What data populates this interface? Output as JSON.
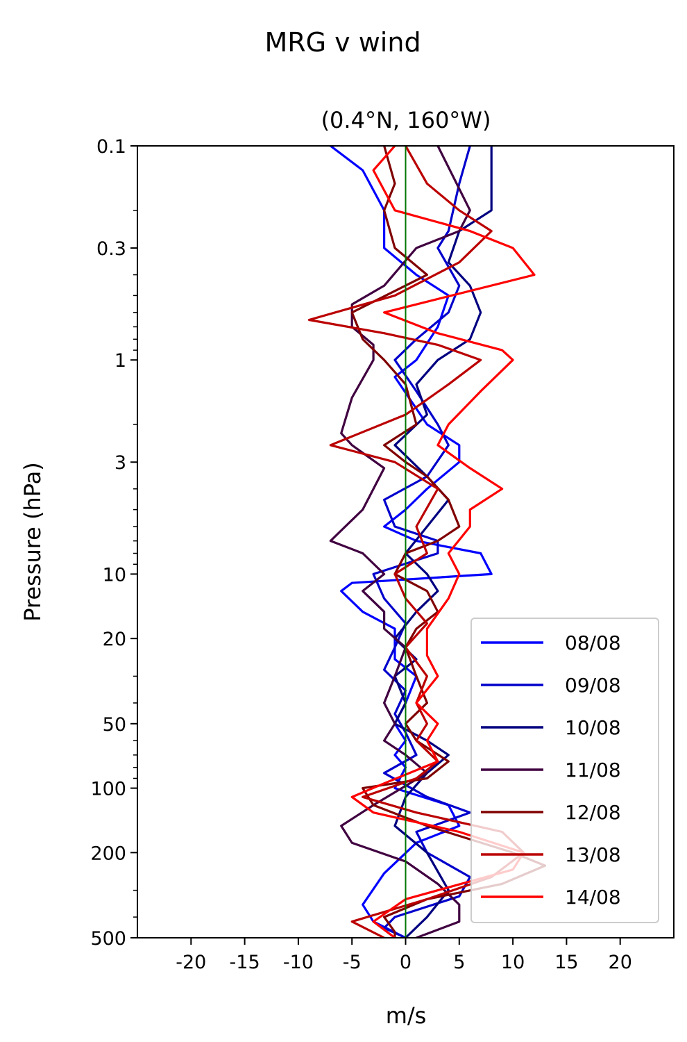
{
  "chart_data": {
    "type": "line",
    "title": "MRG v wind",
    "subtitle": "(0.4°N, 160°W)",
    "xlabel": "m/s",
    "ylabel": "Pressure (hPa)",
    "xlim": [
      -25,
      25
    ],
    "ylim": [
      500,
      0.1
    ],
    "yscale": "log",
    "xticks": [
      -20,
      -15,
      -10,
      -5,
      0,
      5,
      10,
      15,
      20
    ],
    "xtick_labels": [
      "-20",
      "-15",
      "-10",
      "-5",
      "0",
      "5",
      "10",
      "15",
      "20"
    ],
    "yticks": [
      0.1,
      0.3,
      1,
      3,
      10,
      20,
      50,
      100,
      200,
      500
    ],
    "ytick_labels": [
      "0.1",
      "0.3",
      "1",
      "3",
      "10",
      "20",
      "50",
      "100",
      "200",
      "500"
    ],
    "zero_line_color": "#007700",
    "legend_position": "lower right",
    "grid": false,
    "series": [
      {
        "name": "08/08",
        "color": "#0000ff",
        "points": [
          [
            -7,
            0.1
          ],
          [
            -4,
            0.13
          ],
          [
            -2,
            0.2
          ],
          [
            -2,
            0.3
          ],
          [
            1,
            0.4
          ],
          [
            4,
            0.5
          ],
          [
            3,
            0.7
          ],
          [
            1,
            1.0
          ],
          [
            -1,
            1.2
          ],
          [
            2,
            2.0
          ],
          [
            5,
            2.5
          ],
          [
            5,
            3.0
          ],
          [
            2,
            4.0
          ],
          [
            0,
            5.0
          ],
          [
            -2,
            6.0
          ],
          [
            1,
            7.0
          ],
          [
            7,
            8.0
          ],
          [
            8,
            10
          ],
          [
            -5,
            11
          ],
          [
            -6,
            12
          ],
          [
            -4,
            15
          ],
          [
            -1,
            18
          ],
          [
            -1,
            25
          ],
          [
            1,
            30
          ],
          [
            0,
            40
          ],
          [
            -1,
            50
          ],
          [
            0,
            60
          ],
          [
            -1,
            70
          ],
          [
            0,
            80
          ],
          [
            -1,
            100
          ],
          [
            4,
            120
          ],
          [
            5,
            150
          ],
          [
            1,
            180
          ],
          [
            -2,
            250
          ],
          [
            -4,
            350
          ],
          [
            -3,
            420
          ],
          [
            0,
            500
          ]
        ]
      },
      {
        "name": "09/08",
        "color": "#0000cc",
        "points": [
          [
            6,
            0.1
          ],
          [
            5,
            0.15
          ],
          [
            4,
            0.25
          ],
          [
            3,
            0.3
          ],
          [
            5,
            0.45
          ],
          [
            4,
            0.6
          ],
          [
            1,
            0.8
          ],
          [
            -1,
            1.0
          ],
          [
            1,
            1.4
          ],
          [
            3,
            2.0
          ],
          [
            4,
            2.5
          ],
          [
            2,
            3.5
          ],
          [
            -2,
            4.5
          ],
          [
            -1,
            6.0
          ],
          [
            3,
            7.0
          ],
          [
            3,
            8.0
          ],
          [
            -3,
            10
          ],
          [
            -2,
            13
          ],
          [
            0,
            17
          ],
          [
            -1,
            22
          ],
          [
            -2,
            28
          ],
          [
            0,
            35
          ],
          [
            -1,
            45
          ],
          [
            0,
            55
          ],
          [
            1,
            70
          ],
          [
            -2,
            85
          ],
          [
            2,
            110
          ],
          [
            6,
            130
          ],
          [
            1,
            160
          ],
          [
            2,
            200
          ],
          [
            6,
            260
          ],
          [
            5,
            320
          ],
          [
            -1,
            400
          ],
          [
            -2,
            450
          ],
          [
            0,
            500
          ]
        ]
      },
      {
        "name": "10/08",
        "color": "#000080",
        "points": [
          [
            8,
            0.1
          ],
          [
            8,
            0.15
          ],
          [
            8,
            0.2
          ],
          [
            5,
            0.25
          ],
          [
            4,
            0.35
          ],
          [
            6,
            0.45
          ],
          [
            7,
            0.6
          ],
          [
            6,
            0.8
          ],
          [
            3,
            1.0
          ],
          [
            1,
            1.3
          ],
          [
            2,
            1.8
          ],
          [
            -1,
            2.5
          ],
          [
            2,
            3.5
          ],
          [
            4,
            4.5
          ],
          [
            2,
            6.0
          ],
          [
            0,
            8.0
          ],
          [
            2,
            10
          ],
          [
            3,
            12
          ],
          [
            1,
            15
          ],
          [
            -1,
            20
          ],
          [
            1,
            25
          ],
          [
            -1,
            30
          ],
          [
            0,
            40
          ],
          [
            -1,
            50
          ],
          [
            2,
            60
          ],
          [
            4,
            70
          ],
          [
            2,
            85
          ],
          [
            0,
            110
          ],
          [
            -1,
            150
          ],
          [
            2,
            200
          ],
          [
            4,
            300
          ],
          [
            2,
            400
          ],
          [
            0,
            500
          ]
        ]
      },
      {
        "name": "11/08",
        "color": "#400040",
        "points": [
          [
            3,
            0.1
          ],
          [
            6,
            0.2
          ],
          [
            5,
            0.25
          ],
          [
            1,
            0.3
          ],
          [
            -2,
            0.45
          ],
          [
            -5,
            0.55
          ],
          [
            -5,
            0.7
          ],
          [
            -3,
            0.85
          ],
          [
            -3,
            1.0
          ],
          [
            -5,
            1.5
          ],
          [
            -6,
            2.2
          ],
          [
            -5,
            2.5
          ],
          [
            -2,
            3.2
          ],
          [
            -4,
            5.0
          ],
          [
            -7,
            7.0
          ],
          [
            -4,
            8.0
          ],
          [
            -2,
            10
          ],
          [
            -4,
            12
          ],
          [
            -2,
            15
          ],
          [
            -2,
            18
          ],
          [
            0,
            22
          ],
          [
            -1,
            30
          ],
          [
            -2,
            40
          ],
          [
            -1,
            50
          ],
          [
            -2,
            60
          ],
          [
            0,
            70
          ],
          [
            2,
            85
          ],
          [
            -3,
            120
          ],
          [
            -6,
            150
          ],
          [
            -5,
            180
          ],
          [
            0,
            220
          ],
          [
            3,
            280
          ],
          [
            5,
            350
          ],
          [
            5,
            420
          ],
          [
            1,
            500
          ]
        ]
      },
      {
        "name": "12/08",
        "color": "#800000",
        "points": [
          [
            -2,
            0.1
          ],
          [
            -1,
            0.15
          ],
          [
            -2,
            0.2
          ],
          [
            -1,
            0.3
          ],
          [
            2,
            0.4
          ],
          [
            -5,
            0.6
          ],
          [
            -4,
            0.8
          ],
          [
            -2,
            1.0
          ],
          [
            0,
            1.3
          ],
          [
            1,
            2.0
          ],
          [
            -2,
            2.5
          ],
          [
            0,
            3.0
          ],
          [
            2,
            3.5
          ],
          [
            4,
            4.5
          ],
          [
            5,
            6.0
          ],
          [
            3,
            7.0
          ],
          [
            0,
            8.0
          ],
          [
            -1,
            10
          ],
          [
            2,
            12
          ],
          [
            3,
            15
          ],
          [
            1,
            18
          ],
          [
            0,
            22
          ],
          [
            1,
            30
          ],
          [
            2,
            40
          ],
          [
            0,
            50
          ],
          [
            1,
            60
          ],
          [
            4,
            75
          ],
          [
            2,
            90
          ],
          [
            -4,
            100
          ],
          [
            -3,
            120
          ],
          [
            2,
            150
          ],
          [
            10,
            200
          ],
          [
            13,
            230
          ],
          [
            9,
            280
          ],
          [
            2,
            330
          ],
          [
            -2,
            400
          ],
          [
            -1,
            470
          ],
          [
            -1,
            500
          ]
        ]
      },
      {
        "name": "13/08",
        "color": "#bb0000",
        "points": [
          [
            0,
            0.1
          ],
          [
            2,
            0.15
          ],
          [
            5,
            0.2
          ],
          [
            8,
            0.25
          ],
          [
            5,
            0.35
          ],
          [
            -1,
            0.5
          ],
          [
            -9,
            0.65
          ],
          [
            -2,
            0.75
          ],
          [
            3,
            0.85
          ],
          [
            7,
            1.0
          ],
          [
            4,
            1.3
          ],
          [
            0,
            1.8
          ],
          [
            -7,
            2.5
          ],
          [
            -1,
            3.0
          ],
          [
            3,
            4.0
          ],
          [
            1,
            6.0
          ],
          [
            2,
            8.0
          ],
          [
            -1,
            10
          ],
          [
            0,
            13
          ],
          [
            2,
            17
          ],
          [
            0,
            22
          ],
          [
            2,
            30
          ],
          [
            1,
            40
          ],
          [
            2,
            50
          ],
          [
            1,
            60
          ],
          [
            3,
            75
          ],
          [
            1,
            90
          ],
          [
            -4,
            110
          ],
          [
            1,
            130
          ],
          [
            9,
            160
          ],
          [
            11,
            200
          ],
          [
            8,
            260
          ],
          [
            2,
            330
          ],
          [
            -5,
            420
          ],
          [
            -2,
            500
          ]
        ]
      },
      {
        "name": "14/08",
        "color": "#ff0000",
        "points": [
          [
            -1,
            0.1
          ],
          [
            -3,
            0.13
          ],
          [
            -1,
            0.2
          ],
          [
            6,
            0.25
          ],
          [
            10,
            0.3
          ],
          [
            12,
            0.4
          ],
          [
            -2,
            0.6
          ],
          [
            3,
            0.75
          ],
          [
            9,
            0.9
          ],
          [
            10,
            1.0
          ],
          [
            7,
            1.4
          ],
          [
            4,
            2.0
          ],
          [
            3,
            2.5
          ],
          [
            6,
            3.2
          ],
          [
            9,
            4.0
          ],
          [
            6,
            5.0
          ],
          [
            6,
            6.0
          ],
          [
            4,
            8.0
          ],
          [
            5,
            10
          ],
          [
            4,
            13
          ],
          [
            2,
            18
          ],
          [
            2,
            24
          ],
          [
            3,
            30
          ],
          [
            1,
            40
          ],
          [
            3,
            50
          ],
          [
            2,
            60
          ],
          [
            3,
            75
          ],
          [
            -2,
            95
          ],
          [
            -5,
            110
          ],
          [
            -3,
            130
          ],
          [
            5,
            160
          ],
          [
            11,
            200
          ],
          [
            10,
            240
          ],
          [
            0,
            330
          ],
          [
            -3,
            420
          ],
          [
            -1,
            500
          ]
        ]
      }
    ]
  }
}
